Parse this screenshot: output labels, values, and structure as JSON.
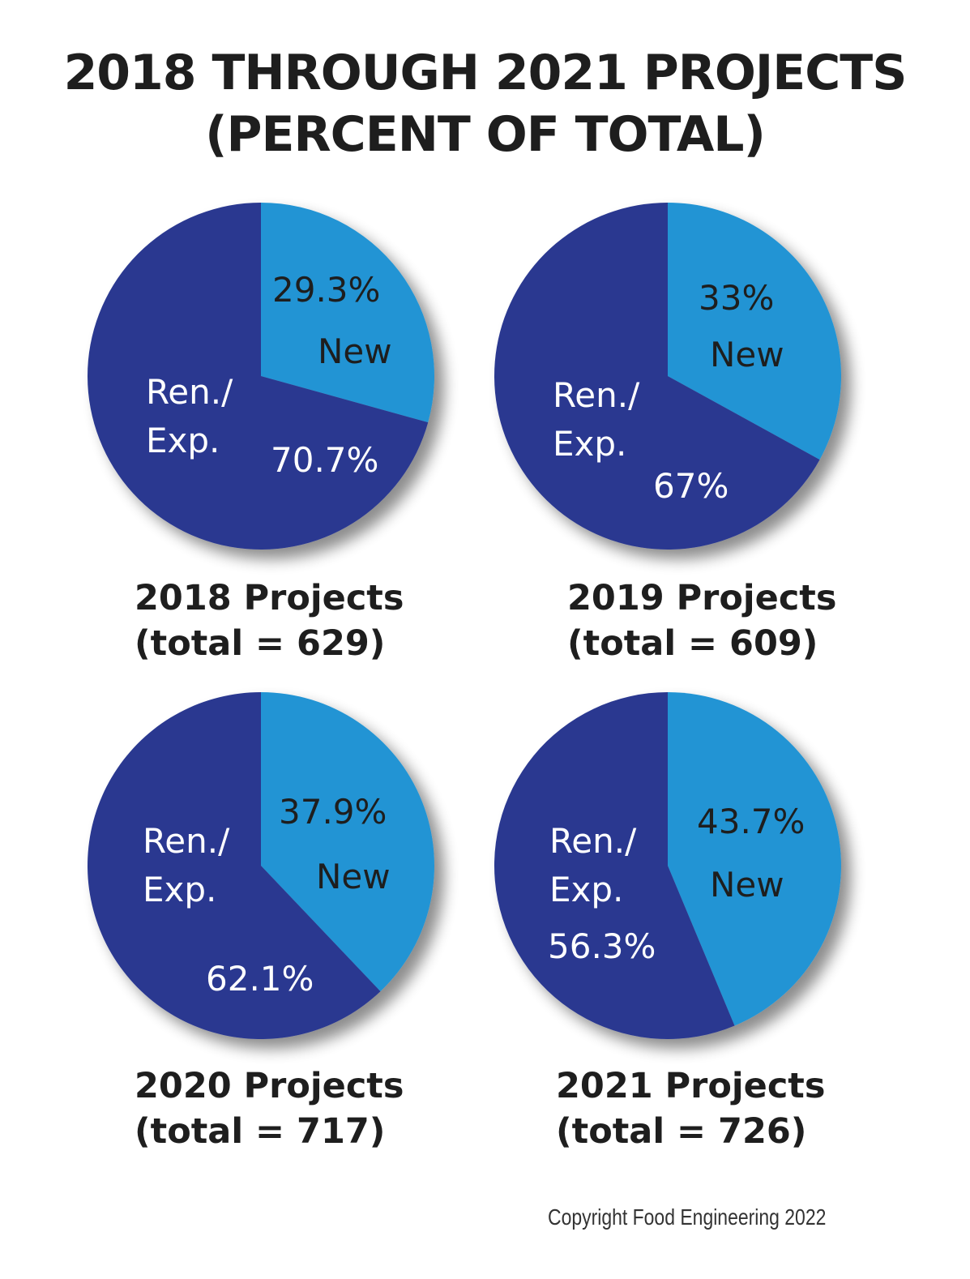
{
  "title": {
    "line1": "2018 THROUGH 2021 PROJECTS",
    "line2": "(PERCENT OF TOTAL)"
  },
  "colors": {
    "new": "#2394d4",
    "ren_exp": "#2a3990"
  },
  "chart_data": [
    {
      "type": "pie",
      "title": "2018 Projects",
      "subtitle": "(total = 629)",
      "slices": [
        {
          "label": "New",
          "value": 29.3,
          "value_text": "29.3%"
        },
        {
          "label_line1": "Ren./",
          "label_line2": "Exp.",
          "value": 70.7,
          "value_text": "70.7%"
        }
      ]
    },
    {
      "type": "pie",
      "title": "2019 Projects",
      "subtitle": "(total = 609)",
      "slices": [
        {
          "label": "New",
          "value": 33,
          "value_text": "33%"
        },
        {
          "label_line1": "Ren./",
          "label_line2": "Exp.",
          "value": 67,
          "value_text": "67%"
        }
      ]
    },
    {
      "type": "pie",
      "title": "2020 Projects",
      "subtitle": "(total = 717)",
      "slices": [
        {
          "label": "New",
          "value": 37.9,
          "value_text": "37.9%"
        },
        {
          "label_line1": "Ren./",
          "label_line2": "Exp.",
          "value": 62.1,
          "value_text": "62.1%"
        }
      ]
    },
    {
      "type": "pie",
      "title": "2021 Projects",
      "subtitle": "(total = 726)",
      "slices": [
        {
          "label": "New",
          "value": 43.7,
          "value_text": "43.7%"
        },
        {
          "label_line1": "Ren./",
          "label_line2": "Exp.",
          "value": 56.3,
          "value_text": "56.3%"
        }
      ]
    }
  ],
  "footer": {
    "copyright": "Copyright Food Engineering 2022"
  }
}
